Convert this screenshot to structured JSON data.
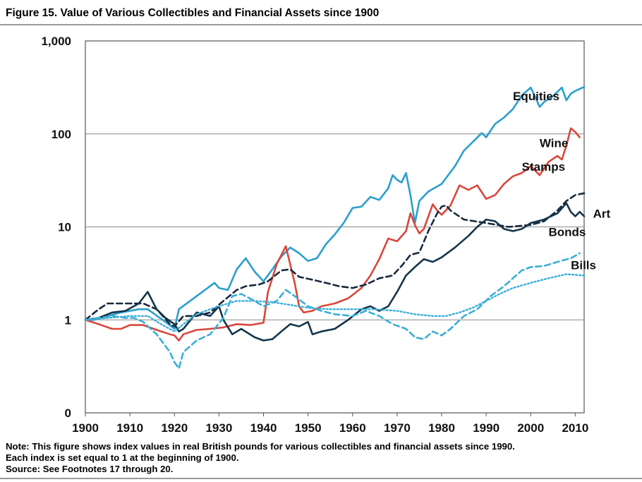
{
  "figure": {
    "title": "Figure 15. Value of Various Collectibles and Financial Assets since 1900",
    "note_lines": [
      "Note: This figure shows index values in real British pounds for various collectibles and financial assets since 1990.",
      "Each index is set equal to 1 at the beginning of 1900.",
      "Source: See Footnotes 17 through 20."
    ]
  },
  "chart_data": {
    "type": "line",
    "title": "Figure 15. Value of Various Collectibles and Financial Assets since 1900",
    "xlabel": "",
    "ylabel": "",
    "xlim": [
      1900,
      2012
    ],
    "ylim": [
      0.1,
      1000
    ],
    "y_scale": "log",
    "x_ticks": [
      1900,
      1910,
      1920,
      1930,
      1940,
      1950,
      1960,
      1970,
      1980,
      1990,
      2000,
      2010
    ],
    "y_ticks": [
      {
        "value": 1000,
        "label": "1,000"
      },
      {
        "value": 100,
        "label": "100"
      },
      {
        "value": 10,
        "label": "10"
      },
      {
        "value": 1,
        "label": "1"
      },
      {
        "value": 0.1,
        "label": "0"
      }
    ],
    "grid": "horizontal",
    "legend": "inline labels at right end of each line",
    "series": [
      {
        "name": "Equities",
        "color": "#2a9fcd",
        "style": "solid",
        "points": [
          [
            1900,
            1
          ],
          [
            1902,
            1
          ],
          [
            1905,
            1.1
          ],
          [
            1908,
            1.2
          ],
          [
            1912,
            1.3
          ],
          [
            1914,
            1.3
          ],
          [
            1918,
            0.95
          ],
          [
            1920,
            0.8
          ],
          [
            1921,
            1.3
          ],
          [
            1925,
            1.8
          ],
          [
            1929,
            2.5
          ],
          [
            1930,
            2.2
          ],
          [
            1932,
            2.1
          ],
          [
            1934,
            3.5
          ],
          [
            1936,
            4.6
          ],
          [
            1938,
            3.3
          ],
          [
            1940,
            2.6
          ],
          [
            1942,
            3.5
          ],
          [
            1944,
            4.8
          ],
          [
            1946,
            6
          ],
          [
            1948,
            5.2
          ],
          [
            1950,
            4.3
          ],
          [
            1952,
            4.6
          ],
          [
            1954,
            6.5
          ],
          [
            1956,
            8.3
          ],
          [
            1958,
            11
          ],
          [
            1960,
            16
          ],
          [
            1962,
            16.5
          ],
          [
            1964,
            21
          ],
          [
            1966,
            19.5
          ],
          [
            1968,
            26
          ],
          [
            1969,
            36
          ],
          [
            1970,
            32
          ],
          [
            1971,
            30
          ],
          [
            1972,
            38
          ],
          [
            1973,
            22
          ],
          [
            1974,
            11
          ],
          [
            1975,
            19
          ],
          [
            1977,
            24
          ],
          [
            1980,
            29
          ],
          [
            1983,
            45
          ],
          [
            1985,
            66
          ],
          [
            1987,
            82
          ],
          [
            1989,
            102
          ],
          [
            1990,
            92
          ],
          [
            1992,
            128
          ],
          [
            1994,
            150
          ],
          [
            1996,
            185
          ],
          [
            1998,
            260
          ],
          [
            2000,
            315
          ],
          [
            2001,
            250
          ],
          [
            2002,
            195
          ],
          [
            2003,
            220
          ],
          [
            2005,
            255
          ],
          [
            2007,
            315
          ],
          [
            2008,
            230
          ],
          [
            2009,
            270
          ],
          [
            2010,
            290
          ],
          [
            2012,
            320
          ]
        ]
      },
      {
        "name": "Wine",
        "color": "#d9473c",
        "style": "solid",
        "points": [
          [
            1900,
            1
          ],
          [
            1903,
            0.9
          ],
          [
            1906,
            0.8
          ],
          [
            1908,
            0.8
          ],
          [
            1910,
            0.88
          ],
          [
            1913,
            0.88
          ],
          [
            1916,
            0.78
          ],
          [
            1919,
            0.7
          ],
          [
            1920,
            0.68
          ],
          [
            1921,
            0.6
          ],
          [
            1922,
            0.7
          ],
          [
            1925,
            0.78
          ],
          [
            1928,
            0.8
          ],
          [
            1931,
            0.83
          ],
          [
            1934,
            0.9
          ],
          [
            1937,
            0.88
          ],
          [
            1940,
            0.93
          ],
          [
            1941,
            2
          ],
          [
            1943,
            4
          ],
          [
            1945,
            6.2
          ],
          [
            1947,
            2.5
          ],
          [
            1948,
            1.4
          ],
          [
            1949,
            1.2
          ],
          [
            1951,
            1.25
          ],
          [
            1953,
            1.4
          ],
          [
            1956,
            1.5
          ],
          [
            1959,
            1.7
          ],
          [
            1962,
            2.2
          ],
          [
            1964,
            3
          ],
          [
            1966,
            4.5
          ],
          [
            1968,
            7.5
          ],
          [
            1970,
            7
          ],
          [
            1972,
            9
          ],
          [
            1973,
            14
          ],
          [
            1974,
            10.5
          ],
          [
            1975,
            8.5
          ],
          [
            1976,
            9.5
          ],
          [
            1978,
            17.5
          ],
          [
            1979,
            15
          ],
          [
            1980,
            13.5
          ],
          [
            1982,
            17
          ],
          [
            1984,
            28
          ],
          [
            1986,
            25
          ],
          [
            1988,
            28
          ],
          [
            1990,
            20
          ],
          [
            1992,
            22
          ],
          [
            1994,
            29
          ],
          [
            1996,
            35
          ],
          [
            1998,
            38
          ],
          [
            2000,
            45
          ],
          [
            2002,
            36
          ],
          [
            2004,
            50
          ],
          [
            2006,
            58
          ],
          [
            2007,
            53
          ],
          [
            2008,
            75
          ],
          [
            2009,
            115
          ],
          [
            2010,
            105
          ],
          [
            2011,
            92
          ]
        ]
      },
      {
        "name": "Stamps",
        "color": "#1a2a3e",
        "style": "dashed",
        "points": [
          [
            1900,
            1
          ],
          [
            1903,
            1.3
          ],
          [
            1905,
            1.5
          ],
          [
            1910,
            1.5
          ],
          [
            1913,
            1.5
          ],
          [
            1916,
            1.3
          ],
          [
            1919,
            0.9
          ],
          [
            1920,
            0.85
          ],
          [
            1922,
            1.1
          ],
          [
            1925,
            1.1
          ],
          [
            1928,
            1.2
          ],
          [
            1931,
            1.6
          ],
          [
            1934,
            2.1
          ],
          [
            1936,
            2.3
          ],
          [
            1939,
            2.4
          ],
          [
            1941,
            2.6
          ],
          [
            1944,
            3.4
          ],
          [
            1946,
            3.5
          ],
          [
            1948,
            2.9
          ],
          [
            1951,
            2.7
          ],
          [
            1954,
            2.5
          ],
          [
            1957,
            2.3
          ],
          [
            1960,
            2.2
          ],
          [
            1963,
            2.4
          ],
          [
            1966,
            2.8
          ],
          [
            1969,
            3
          ],
          [
            1971,
            3.8
          ],
          [
            1973,
            5
          ],
          [
            1975,
            5.3
          ],
          [
            1977,
            9
          ],
          [
            1979,
            14
          ],
          [
            1980,
            16.5
          ],
          [
            1981,
            17
          ],
          [
            1982,
            15
          ],
          [
            1985,
            12
          ],
          [
            1990,
            11
          ],
          [
            1995,
            10
          ],
          [
            2000,
            10.5
          ],
          [
            2003,
            11.5
          ],
          [
            2006,
            15
          ],
          [
            2008,
            19
          ],
          [
            2010,
            22
          ],
          [
            2012,
            23
          ]
        ]
      },
      {
        "name": "Art",
        "color": "#13354a",
        "style": "solid",
        "points": [
          [
            1900,
            1
          ],
          [
            1903,
            1.05
          ],
          [
            1906,
            1.2
          ],
          [
            1909,
            1.25
          ],
          [
            1912,
            1.5
          ],
          [
            1914,
            2
          ],
          [
            1916,
            1.3
          ],
          [
            1918,
            1.05
          ],
          [
            1920,
            0.9
          ],
          [
            1921,
            0.75
          ],
          [
            1922,
            0.8
          ],
          [
            1925,
            1.2
          ],
          [
            1928,
            1.1
          ],
          [
            1930,
            1.4
          ],
          [
            1931,
            1
          ],
          [
            1933,
            0.7
          ],
          [
            1935,
            0.8
          ],
          [
            1938,
            0.65
          ],
          [
            1940,
            0.6
          ],
          [
            1942,
            0.62
          ],
          [
            1944,
            0.75
          ],
          [
            1946,
            0.9
          ],
          [
            1948,
            0.85
          ],
          [
            1950,
            0.95
          ],
          [
            1951,
            0.7
          ],
          [
            1953,
            0.75
          ],
          [
            1956,
            0.8
          ],
          [
            1959,
            1
          ],
          [
            1962,
            1.3
          ],
          [
            1964,
            1.4
          ],
          [
            1966,
            1.25
          ],
          [
            1968,
            1.4
          ],
          [
            1970,
            2
          ],
          [
            1972,
            3
          ],
          [
            1974,
            3.7
          ],
          [
            1976,
            4.5
          ],
          [
            1978,
            4.2
          ],
          [
            1980,
            4.7
          ],
          [
            1983,
            6
          ],
          [
            1986,
            8
          ],
          [
            1988,
            10
          ],
          [
            1990,
            12
          ],
          [
            1992,
            11.5
          ],
          [
            1994,
            9.5
          ],
          [
            1996,
            9
          ],
          [
            1998,
            9.5
          ],
          [
            2000,
            11
          ],
          [
            2003,
            12
          ],
          [
            2006,
            14
          ],
          [
            2008,
            18
          ],
          [
            2009,
            14.5
          ],
          [
            2010,
            13
          ],
          [
            2011,
            14.5
          ],
          [
            2012,
            13
          ]
        ]
      },
      {
        "name": "Bonds",
        "color": "#3aaed8",
        "style": "dashed",
        "points": [
          [
            1900,
            1
          ],
          [
            1903,
            1.05
          ],
          [
            1906,
            1.1
          ],
          [
            1909,
            1.05
          ],
          [
            1911,
            1.05
          ],
          [
            1913,
            0.95
          ],
          [
            1916,
            0.7
          ],
          [
            1919,
            0.45
          ],
          [
            1920,
            0.35
          ],
          [
            1921,
            0.3
          ],
          [
            1922,
            0.45
          ],
          [
            1925,
            0.6
          ],
          [
            1928,
            0.7
          ],
          [
            1931,
            1.05
          ],
          [
            1933,
            1.8
          ],
          [
            1935,
            1.9
          ],
          [
            1938,
            1.6
          ],
          [
            1940,
            1.4
          ],
          [
            1943,
            1.6
          ],
          [
            1945,
            2.1
          ],
          [
            1947,
            1.8
          ],
          [
            1950,
            1.4
          ],
          [
            1953,
            1.25
          ],
          [
            1956,
            1.15
          ],
          [
            1960,
            1.1
          ],
          [
            1963,
            1.25
          ],
          [
            1966,
            1.1
          ],
          [
            1969,
            0.9
          ],
          [
            1972,
            0.8
          ],
          [
            1974,
            0.65
          ],
          [
            1976,
            0.62
          ],
          [
            1978,
            0.75
          ],
          [
            1980,
            0.68
          ],
          [
            1982,
            0.8
          ],
          [
            1985,
            1.1
          ],
          [
            1988,
            1.3
          ],
          [
            1991,
            1.8
          ],
          [
            1994,
            2.3
          ],
          [
            1996,
            2.8
          ],
          [
            1998,
            3.4
          ],
          [
            2000,
            3.7
          ],
          [
            2003,
            3.8
          ],
          [
            2006,
            4.2
          ],
          [
            2009,
            4.6
          ],
          [
            2011,
            5.2
          ]
        ]
      },
      {
        "name": "Bills",
        "color": "#3aaed8",
        "style": "dotted",
        "points": [
          [
            1900,
            1
          ],
          [
            1905,
            1.05
          ],
          [
            1910,
            1.1
          ],
          [
            1914,
            1.1
          ],
          [
            1917,
            0.9
          ],
          [
            1920,
            0.75
          ],
          [
            1922,
            0.9
          ],
          [
            1925,
            1.15
          ],
          [
            1928,
            1.3
          ],
          [
            1931,
            1.45
          ],
          [
            1934,
            1.6
          ],
          [
            1938,
            1.6
          ],
          [
            1942,
            1.55
          ],
          [
            1946,
            1.45
          ],
          [
            1950,
            1.35
          ],
          [
            1955,
            1.3
          ],
          [
            1960,
            1.3
          ],
          [
            1965,
            1.3
          ],
          [
            1970,
            1.25
          ],
          [
            1974,
            1.15
          ],
          [
            1978,
            1.1
          ],
          [
            1981,
            1.1
          ],
          [
            1984,
            1.2
          ],
          [
            1987,
            1.35
          ],
          [
            1990,
            1.6
          ],
          [
            1993,
            1.9
          ],
          [
            1996,
            2.2
          ],
          [
            2000,
            2.5
          ],
          [
            2004,
            2.8
          ],
          [
            2008,
            3.1
          ],
          [
            2012,
            3
          ]
        ]
      }
    ]
  }
}
